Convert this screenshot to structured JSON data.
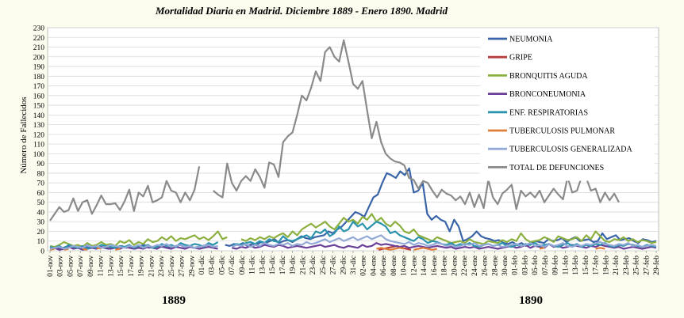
{
  "chart_data": {
    "type": "line",
    "title": "Mortalidad Diaria en Madrid. Diciembre 1889 - Enero 1890. Madrid",
    "ylabel": "Número de Fallecidos",
    "year_labels": [
      "1889",
      "1890"
    ],
    "ylim": [
      0,
      230
    ],
    "yticks": [
      0,
      10,
      20,
      30,
      40,
      50,
      60,
      70,
      80,
      90,
      100,
      110,
      120,
      130,
      140,
      150,
      160,
      170,
      180,
      190,
      200,
      210,
      220,
      230
    ],
    "grid": true,
    "legend_position": "top-right",
    "xtick_labels": [
      "01-nov",
      "03-nov",
      "05-nov",
      "07-nov",
      "09-nov",
      "11-nov",
      "13-nov",
      "15-nov",
      "17-nov",
      "19-nov",
      "21-nov",
      "23-nov",
      "25-nov",
      "27-nov",
      "29-nov",
      "01-dic",
      "03-dic",
      "05-dic",
      "07-dic",
      "09-dic",
      "11-dic",
      "13-dic",
      "15-dic",
      "17-dic",
      "19-dic",
      "21-dic",
      "23-dic",
      "25-dic",
      "27-dic",
      "29-dic",
      "31-dic",
      "02-ene",
      "04-ene",
      "06-ene",
      "08-ene",
      "10-ene",
      "12-ene",
      "14-ene",
      "16-ene",
      "18-ene",
      "20-ene",
      "22-ene",
      "24-ene",
      "26-ene",
      "28-ene",
      "30-ene",
      "01-feb",
      "03-feb",
      "05-feb",
      "07-feb",
      "09-feb",
      "11-feb",
      "13-feb",
      "15-feb",
      "17-feb",
      "19-feb",
      "21-feb",
      "23-feb",
      "25-feb",
      "27-feb",
      "29-feb"
    ],
    "series": [
      {
        "name": "NEUMONIA",
        "color": "#3a64a8",
        "values": [
          3,
          4,
          2,
          3,
          5,
          4,
          3,
          2,
          4,
          3,
          5,
          4,
          3,
          2,
          3,
          4,
          5,
          3,
          4,
          2,
          5,
          6,
          3,
          4,
          5,
          4,
          3,
          4,
          5,
          6,
          4,
          5,
          3,
          4,
          5,
          6,
          5,
          null,
          null,
          6,
          5,
          7,
          6,
          8,
          5,
          7,
          6,
          9,
          8,
          10,
          12,
          8,
          10,
          11,
          9,
          12,
          15,
          13,
          12,
          14,
          15,
          16,
          20,
          18,
          22,
          25,
          30,
          35,
          40,
          38,
          35,
          45,
          55,
          58,
          70,
          80,
          78,
          75,
          82,
          78,
          85,
          60,
          62,
          70,
          38,
          32,
          36,
          32,
          30,
          20,
          32,
          25,
          10,
          12,
          15,
          20,
          15,
          13,
          12,
          10,
          11,
          8,
          7,
          9,
          6,
          8,
          5,
          7,
          10,
          9,
          8,
          12,
          10,
          11,
          13,
          9,
          12,
          14,
          10,
          11,
          12,
          9,
          10,
          18,
          12,
          14,
          16,
          11,
          12,
          13,
          10,
          8,
          12,
          11,
          9,
          10
        ]
      },
      {
        "name": "GRIPE",
        "color": "#b83a3a",
        "values": [
          null,
          null,
          null,
          null,
          null,
          null,
          null,
          null,
          null,
          null,
          null,
          null,
          null,
          null,
          null,
          null,
          null,
          null,
          null,
          null,
          null,
          null,
          null,
          null,
          null,
          null,
          null,
          null,
          null,
          null,
          null,
          null,
          null,
          null,
          null,
          null,
          null,
          null,
          null,
          null,
          null,
          null,
          null,
          null,
          null,
          null,
          null,
          null,
          null,
          null,
          null,
          null,
          null,
          null,
          null,
          null,
          null,
          null,
          null,
          null,
          null,
          null,
          null,
          null,
          null,
          null,
          null,
          null,
          null,
          null,
          null,
          1,
          2,
          3,
          4,
          5,
          3,
          2,
          1,
          null,
          null,
          null,
          null,
          null,
          null,
          null,
          null,
          null,
          null,
          null,
          null,
          null,
          null,
          null,
          null,
          null,
          null,
          null,
          null,
          null,
          null,
          null,
          null,
          null,
          null,
          null,
          null,
          null,
          null,
          null,
          null,
          null,
          null,
          null,
          null,
          null,
          null,
          null,
          null,
          null,
          null,
          null,
          null,
          null,
          null,
          null,
          null,
          null,
          null,
          null,
          null,
          null
        ]
      },
      {
        "name": "BRONQUITIS AGUDA",
        "color": "#8cb040",
        "values": [
          5,
          4,
          6,
          9,
          7,
          5,
          6,
          4,
          8,
          5,
          6,
          9,
          6,
          7,
          5,
          10,
          8,
          11,
          6,
          9,
          7,
          12,
          9,
          10,
          14,
          11,
          15,
          10,
          13,
          12,
          14,
          16,
          12,
          14,
          11,
          15,
          20,
          12,
          14,
          null,
          null,
          12,
          10,
          13,
          11,
          14,
          12,
          15,
          13,
          16,
          18,
          14,
          20,
          16,
          22,
          25,
          28,
          24,
          27,
          30,
          25,
          22,
          28,
          34,
          30,
          32,
          28,
          35,
          32,
          38,
          30,
          34,
          28,
          25,
          30,
          26,
          20,
          18,
          22,
          16,
          14,
          12,
          10,
          14,
          12,
          10,
          8,
          9,
          10,
          8,
          12,
          9,
          8,
          7,
          10,
          9,
          8,
          11,
          9,
          12,
          10,
          18,
          12,
          9,
          10,
          11,
          14,
          12,
          9,
          15,
          13,
          11,
          12,
          14,
          10,
          16,
          12,
          20,
          15,
          10,
          9,
          12,
          11,
          14,
          10,
          12,
          9,
          11,
          10,
          8,
          9
        ]
      },
      {
        "name": "BRONCONEUMONIA",
        "color": "#6a3f98",
        "values": [
          2,
          3,
          1,
          2,
          4,
          2,
          3,
          1,
          2,
          3,
          2,
          4,
          3,
          2,
          3,
          2,
          4,
          3,
          2,
          3,
          2,
          4,
          3,
          2,
          5,
          3,
          2,
          4,
          3,
          2,
          4,
          3,
          2,
          3,
          4,
          3,
          2,
          null,
          null,
          3,
          2,
          4,
          3,
          5,
          3,
          4,
          6,
          5,
          4,
          6,
          5,
          3,
          4,
          5,
          4,
          3,
          4,
          5,
          6,
          4,
          5,
          6,
          4,
          3,
          5,
          4,
          3,
          6,
          4,
          5,
          8,
          6,
          7,
          6,
          5,
          4,
          5,
          3,
          4,
          5,
          4,
          3,
          4,
          5,
          4,
          3,
          4,
          2,
          3,
          4,
          3,
          4,
          2,
          3,
          4,
          3,
          2,
          3,
          4,
          5,
          3,
          4,
          6,
          3,
          5,
          4,
          3,
          7,
          4,
          5,
          3,
          4,
          6,
          5,
          4,
          3,
          5,
          4,
          6,
          5,
          4,
          3,
          4,
          2,
          3,
          4,
          3,
          2,
          3,
          4,
          3
        ]
      },
      {
        "name": "ENF. RESPIRATORIAS",
        "color": "#2c93ad",
        "values": [
          4,
          3,
          5,
          2,
          6,
          4,
          3,
          5,
          2,
          4,
          3,
          6,
          5,
          4,
          3,
          5,
          4,
          6,
          3,
          5,
          4,
          6,
          3,
          4,
          7,
          5,
          6,
          4,
          8,
          6,
          5,
          7,
          6,
          4,
          8,
          6,
          9,
          null,
          null,
          5,
          7,
          6,
          8,
          9,
          7,
          10,
          8,
          12,
          10,
          9,
          15,
          11,
          10,
          12,
          14,
          16,
          13,
          20,
          18,
          22,
          15,
          18,
          25,
          20,
          22,
          30,
          25,
          28,
          22,
          26,
          30,
          28,
          25,
          18,
          20,
          16,
          14,
          12,
          10,
          14,
          12,
          8,
          10,
          9,
          7,
          6,
          8,
          5,
          7,
          6,
          8,
          5,
          4,
          6,
          7,
          5,
          6,
          8,
          5,
          4,
          6,
          5,
          7,
          6,
          8,
          5,
          6,
          7,
          5,
          4,
          6,
          8,
          5,
          7,
          4,
          6,
          5,
          7,
          6,
          8,
          5,
          4,
          6,
          5,
          7,
          6,
          5,
          4,
          6,
          5,
          4
        ]
      },
      {
        "name": "TUBERCULOSIS PULMONAR",
        "color": "#e07f3a",
        "values": [
          1,
          2,
          null,
          1,
          2,
          null,
          null,
          2,
          1,
          null,
          3,
          2,
          null,
          null,
          1,
          2,
          null,
          null,
          null,
          null,
          null,
          null,
          null,
          null,
          null,
          null,
          null,
          null,
          null,
          null,
          null,
          null,
          null,
          null,
          null,
          null,
          null,
          null,
          null,
          null,
          null,
          null,
          null,
          null,
          null,
          null,
          null,
          null,
          null,
          null,
          null,
          null,
          null,
          null,
          null,
          null,
          null,
          null,
          null,
          null,
          null,
          null,
          null,
          null,
          null,
          null,
          null,
          null,
          null,
          null,
          2,
          3,
          2,
          1,
          2,
          3,
          2,
          null,
          1,
          2,
          3,
          2,
          1,
          2,
          null,
          null,
          null,
          null,
          null,
          null,
          null,
          null,
          null,
          null,
          null,
          null,
          null,
          null,
          null,
          null,
          null,
          null,
          null,
          null,
          null,
          2,
          3,
          null,
          null,
          null,
          null,
          null,
          null,
          null,
          null,
          null,
          null,
          2,
          3,
          2,
          null,
          null,
          null,
          null,
          null,
          null,
          null,
          null,
          null,
          null,
          null
        ]
      },
      {
        "name": "TUBERCULOSIS GENERALIZADA",
        "color": "#93a9d6",
        "values": [
          2,
          3,
          4,
          2,
          3,
          5,
          4,
          3,
          6,
          4,
          5,
          3,
          4,
          6,
          5,
          4,
          3,
          5,
          4,
          6,
          3,
          5,
          4,
          6,
          5,
          7,
          4,
          5,
          6,
          4,
          5,
          3,
          4,
          5,
          6,
          4,
          5,
          null,
          null,
          4,
          6,
          5,
          7,
          4,
          6,
          5,
          8,
          6,
          5,
          7,
          6,
          8,
          5,
          7,
          6,
          9,
          7,
          8,
          10,
          12,
          9,
          11,
          13,
          10,
          12,
          14,
          11,
          13,
          15,
          12,
          14,
          16,
          12,
          10,
          9,
          8,
          7,
          9,
          6,
          8,
          7,
          5,
          6,
          8,
          7,
          5,
          6,
          4,
          5,
          7,
          6,
          8,
          5,
          6,
          7,
          5,
          6,
          4,
          5,
          6,
          7,
          5,
          6,
          8,
          5,
          6,
          4,
          7,
          5,
          6,
          8,
          5,
          4,
          6,
          5,
          7,
          6,
          8,
          9,
          7,
          6,
          5,
          7,
          6,
          8,
          5,
          6,
          4,
          5,
          6,
          5
        ]
      },
      {
        "name": "TOTAL DE DEFUNCIONES",
        "color": "#8a8a8a",
        "values": [
          31,
          38,
          45,
          40,
          42,
          54,
          41,
          50,
          52,
          38,
          47,
          57,
          48,
          48,
          49,
          42,
          51,
          63,
          41,
          60,
          56,
          67,
          50,
          52,
          55,
          72,
          62,
          60,
          50,
          60,
          52,
          63,
          87,
          null,
          null,
          62,
          58,
          55,
          90,
          70,
          62,
          72,
          77,
          72,
          84,
          76,
          65,
          91,
          89,
          76,
          112,
          118,
          122,
          140,
          160,
          155,
          168,
          185,
          175,
          205,
          210,
          200,
          195,
          217,
          195,
          172,
          167,
          175,
          145,
          116,
          133,
          112,
          100,
          95,
          92,
          91,
          88,
          75,
          73,
          64,
          72,
          70,
          62,
          55,
          63,
          59,
          57,
          52,
          56,
          48,
          60,
          45,
          58,
          44,
          73,
          55,
          48,
          59,
          63,
          68,
          43,
          62,
          56,
          60,
          55,
          62,
          50,
          57,
          64,
          58,
          53,
          76,
          60,
          62,
          76,
          75,
          62,
          64,
          50,
          60,
          52,
          59,
          50,
          null,
          null,
          null,
          null,
          null,
          null,
          null,
          null
        ]
      }
    ]
  }
}
